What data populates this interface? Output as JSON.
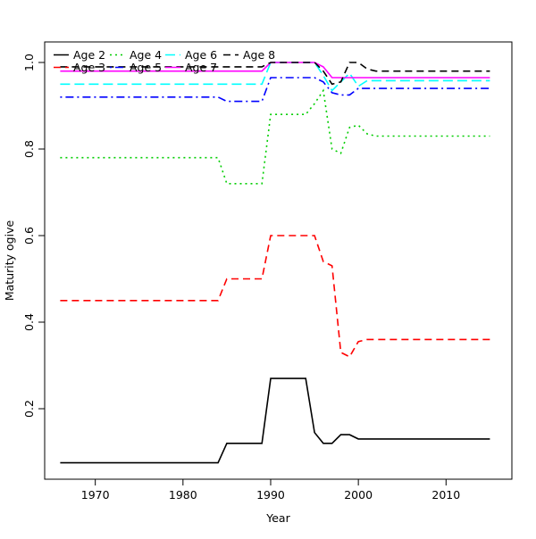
{
  "figure": {
    "background": "#FFFFFF",
    "box_color": "#000000",
    "text_color": "#000000"
  },
  "chart_data": {
    "type": "line",
    "title": "",
    "xlabel": "Year",
    "ylabel": "Maturity ogive",
    "grid": false,
    "legend_position": "top-left-inside",
    "legend_columns": 4,
    "legend_rows": [
      [
        "Age 2",
        "Age 4",
        "Age 6",
        "Age 8"
      ],
      [
        "Age 3",
        "Age 5",
        "Age 7"
      ]
    ],
    "x_ticks": [
      1970,
      1980,
      1990,
      2000,
      2010
    ],
    "y_ticks": [
      0.2,
      0.4,
      0.6,
      0.8,
      1.0
    ],
    "y_tick_labels": [
      "0.2",
      "0.4",
      "0.6",
      "0.8",
      "1.0"
    ],
    "xlim": [
      1964,
      2017.5
    ],
    "ylim": [
      0.04,
      1.05
    ],
    "x": [
      1966,
      1967,
      1968,
      1969,
      1970,
      1971,
      1972,
      1973,
      1974,
      1975,
      1976,
      1977,
      1978,
      1979,
      1980,
      1981,
      1982,
      1983,
      1984,
      1985,
      1986,
      1987,
      1988,
      1989,
      1990,
      1991,
      1992,
      1993,
      1994,
      1995,
      1996,
      1997,
      1998,
      1999,
      2000,
      2001,
      2002,
      2003,
      2004,
      2005,
      2006,
      2007,
      2008,
      2009,
      2010,
      2011,
      2012,
      2013,
      2014,
      2015
    ],
    "series": [
      {
        "name": "Age 2",
        "color": "#000000",
        "linestyle": "solid",
        "values": [
          0.075,
          0.075,
          0.075,
          0.075,
          0.075,
          0.075,
          0.075,
          0.075,
          0.075,
          0.075,
          0.075,
          0.075,
          0.075,
          0.075,
          0.075,
          0.075,
          0.075,
          0.075,
          0.075,
          0.12,
          0.12,
          0.12,
          0.12,
          0.12,
          0.27,
          0.27,
          0.27,
          0.27,
          0.27,
          0.145,
          0.12,
          0.12,
          0.14,
          0.14,
          0.13,
          0.13,
          0.13,
          0.13,
          0.13,
          0.13,
          0.13,
          0.13,
          0.13,
          0.13,
          0.13,
          0.13,
          0.13,
          0.13,
          0.13,
          0.13
        ]
      },
      {
        "name": "Age 3",
        "color": "#FF0000",
        "linestyle": "dashed",
        "values": [
          0.45,
          0.45,
          0.45,
          0.45,
          0.45,
          0.45,
          0.45,
          0.45,
          0.45,
          0.45,
          0.45,
          0.45,
          0.45,
          0.45,
          0.45,
          0.45,
          0.45,
          0.45,
          0.45,
          0.5,
          0.5,
          0.5,
          0.5,
          0.5,
          0.6,
          0.6,
          0.6,
          0.6,
          0.6,
          0.6,
          0.54,
          0.53,
          0.33,
          0.32,
          0.355,
          0.36,
          0.36,
          0.36,
          0.36,
          0.36,
          0.36,
          0.36,
          0.36,
          0.36,
          0.36,
          0.36,
          0.36,
          0.36,
          0.36,
          0.36
        ]
      },
      {
        "name": "Age 4",
        "color": "#00CD00",
        "linestyle": "dotted",
        "values": [
          0.78,
          0.78,
          0.78,
          0.78,
          0.78,
          0.78,
          0.78,
          0.78,
          0.78,
          0.78,
          0.78,
          0.78,
          0.78,
          0.78,
          0.78,
          0.78,
          0.78,
          0.78,
          0.78,
          0.72,
          0.72,
          0.72,
          0.72,
          0.72,
          0.88,
          0.88,
          0.88,
          0.88,
          0.88,
          0.905,
          0.935,
          0.8,
          0.79,
          0.85,
          0.855,
          0.835,
          0.83,
          0.83,
          0.83,
          0.83,
          0.83,
          0.83,
          0.83,
          0.83,
          0.83,
          0.83,
          0.83,
          0.83,
          0.83,
          0.83
        ]
      },
      {
        "name": "Age 5",
        "color": "#0000FF",
        "linestyle": "dotdash",
        "values": [
          0.92,
          0.92,
          0.92,
          0.92,
          0.92,
          0.92,
          0.92,
          0.92,
          0.92,
          0.92,
          0.92,
          0.92,
          0.92,
          0.92,
          0.92,
          0.92,
          0.92,
          0.92,
          0.92,
          0.91,
          0.91,
          0.91,
          0.91,
          0.91,
          0.965,
          0.965,
          0.965,
          0.965,
          0.965,
          0.965,
          0.955,
          0.93,
          0.925,
          0.925,
          0.94,
          0.94,
          0.94,
          0.94,
          0.94,
          0.94,
          0.94,
          0.94,
          0.94,
          0.94,
          0.94,
          0.94,
          0.94,
          0.94,
          0.94,
          0.94
        ]
      },
      {
        "name": "Age 6",
        "color": "#00FFFF",
        "linestyle": "longdash",
        "values": [
          0.95,
          0.95,
          0.95,
          0.95,
          0.95,
          0.95,
          0.95,
          0.95,
          0.95,
          0.95,
          0.95,
          0.95,
          0.95,
          0.95,
          0.95,
          0.95,
          0.95,
          0.95,
          0.95,
          0.95,
          0.95,
          0.95,
          0.95,
          0.95,
          1.0,
          1.0,
          1.0,
          1.0,
          1.0,
          1.0,
          0.97,
          0.935,
          0.955,
          0.975,
          0.945,
          0.958,
          0.958,
          0.958,
          0.958,
          0.958,
          0.958,
          0.958,
          0.958,
          0.958,
          0.958,
          0.958,
          0.958,
          0.958,
          0.958,
          0.958
        ]
      },
      {
        "name": "Age 7",
        "color": "#FF00FF",
        "linestyle": "solid",
        "values": [
          0.98,
          0.98,
          0.98,
          0.98,
          0.98,
          0.98,
          0.98,
          0.98,
          0.98,
          0.98,
          0.98,
          0.98,
          0.98,
          0.98,
          0.98,
          0.98,
          0.98,
          0.98,
          0.98,
          0.98,
          0.98,
          0.98,
          0.98,
          0.98,
          1.0,
          1.0,
          1.0,
          1.0,
          1.0,
          1.0,
          0.99,
          0.965,
          0.965,
          0.965,
          0.965,
          0.965,
          0.965,
          0.965,
          0.965,
          0.965,
          0.965,
          0.965,
          0.965,
          0.965,
          0.965,
          0.965,
          0.965,
          0.965,
          0.965,
          0.965
        ]
      },
      {
        "name": "Age 8",
        "color": "#000000",
        "linestyle": "dashed",
        "values": [
          0.99,
          0.99,
          0.99,
          0.99,
          0.99,
          0.99,
          0.99,
          0.99,
          0.99,
          0.99,
          0.99,
          0.99,
          0.99,
          0.99,
          0.99,
          0.99,
          0.99,
          0.99,
          0.99,
          0.99,
          0.99,
          0.99,
          0.99,
          0.99,
          1.0,
          1.0,
          1.0,
          1.0,
          1.0,
          1.0,
          0.98,
          0.95,
          0.955,
          1.0,
          1.0,
          0.985,
          0.98,
          0.98,
          0.98,
          0.98,
          0.98,
          0.98,
          0.98,
          0.98,
          0.98,
          0.98,
          0.98,
          0.98,
          0.98,
          0.98
        ]
      }
    ]
  }
}
